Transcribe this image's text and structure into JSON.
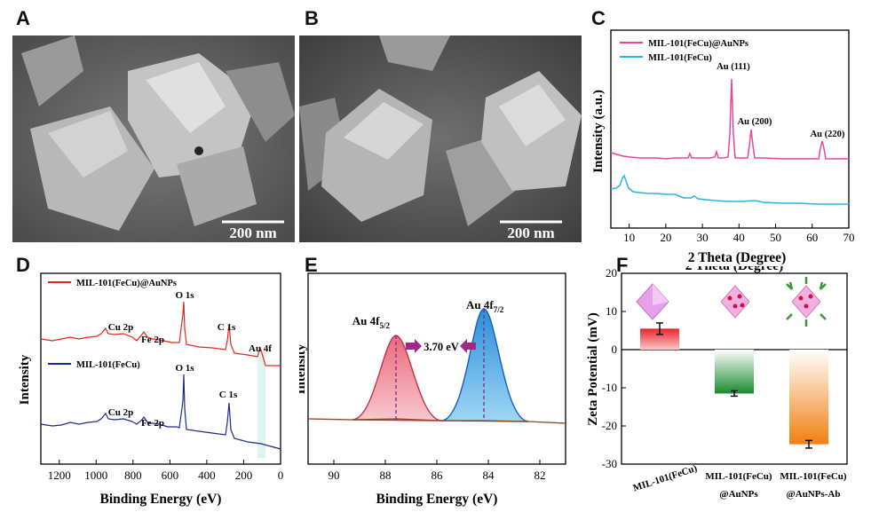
{
  "panels": {
    "A": {
      "label": "A",
      "scalebar": "200 nm"
    },
    "B": {
      "label": "B",
      "scalebar": "200 nm"
    },
    "C": {
      "label": "C"
    },
    "D": {
      "label": "D"
    },
    "E": {
      "label": "E"
    },
    "F": {
      "label": "F"
    }
  },
  "colors": {
    "pink": "#e8469a",
    "cyan": "#2bb3e0",
    "red": "#e8241c",
    "navy": "#1e2b8c",
    "brown": "#a0522d"
  },
  "chart_data": [
    {
      "id": "C",
      "type": "line",
      "xlabel": "2 Theta (Degree)",
      "ylabel": "Intensity (a.u.)",
      "xlim": [
        5,
        70
      ],
      "xticks": [
        "10",
        "20",
        "30",
        "40",
        "50",
        "60",
        "70"
      ],
      "legend": [
        "MIL-101(FeCu)@AuNPs",
        "MIL-101(FeCu)"
      ],
      "annotations": [
        "Au (111)",
        "Au (200)",
        "Au (220)"
      ],
      "series": [
        {
          "name": "MIL-101(FeCu)@AuNPs",
          "peaks_2theta": [
            38.2,
            44.4,
            64.6
          ]
        },
        {
          "name": "MIL-101(FeCu)",
          "peaks_2theta": [
            9.0
          ]
        }
      ]
    },
    {
      "id": "D",
      "type": "line",
      "xlabel": "Binding Energy (eV)",
      "ylabel": "Intensity",
      "xlim": [
        1300,
        0
      ],
      "xticks": [
        "1200",
        "1000",
        "800",
        "600",
        "400",
        "200",
        "0"
      ],
      "legend": [
        "MIL-101(FeCu)@AuNPs",
        "MIL-101(FeCu)"
      ],
      "annotations_top": [
        "Cu 2p",
        "Fe 2p",
        "O 1s",
        "C 1s",
        "Au 4f"
      ],
      "annotations_bottom": [
        "Cu 2p",
        "Fe 2p",
        "O 1s",
        "C 1s"
      ],
      "peaks_eV": {
        "Cu 2p": 933,
        "Fe 2p": 711,
        "O 1s": 531,
        "C 1s": 285,
        "Au 4f": 84
      }
    },
    {
      "id": "E",
      "type": "line",
      "xlabel": "Binding Energy (eV)",
      "ylabel": "Intensity",
      "xlim": [
        91,
        81
      ],
      "xticks": [
        "90",
        "88",
        "86",
        "84",
        "82"
      ],
      "peaks": [
        {
          "name": "Au 4f",
          "sub": "5/2",
          "center": 87.8
        },
        {
          "name": "Au 4f",
          "sub": "7/2",
          "center": 84.1
        }
      ],
      "split_label": "3.70 eV"
    },
    {
      "id": "F",
      "type": "bar",
      "ylabel": "Zeta Potential (mV)",
      "ylim": [
        -30,
        20
      ],
      "yticks": [
        "20",
        "10",
        "0",
        "-10",
        "-20",
        "-30"
      ],
      "categories": [
        [
          "MIL-101(FeCu)"
        ],
        [
          "MIL-101(FeCu)",
          "@AuNPs"
        ],
        [
          "MIL-101(FeCu)",
          "@AuNPs-Ab"
        ]
      ],
      "values": [
        5.5,
        -11.5,
        -24.8
      ],
      "errors": [
        1.5,
        0.7,
        1.0
      ],
      "bar_colors": [
        "#e8242c",
        "#1a8a2e",
        "#f08010"
      ]
    }
  ]
}
